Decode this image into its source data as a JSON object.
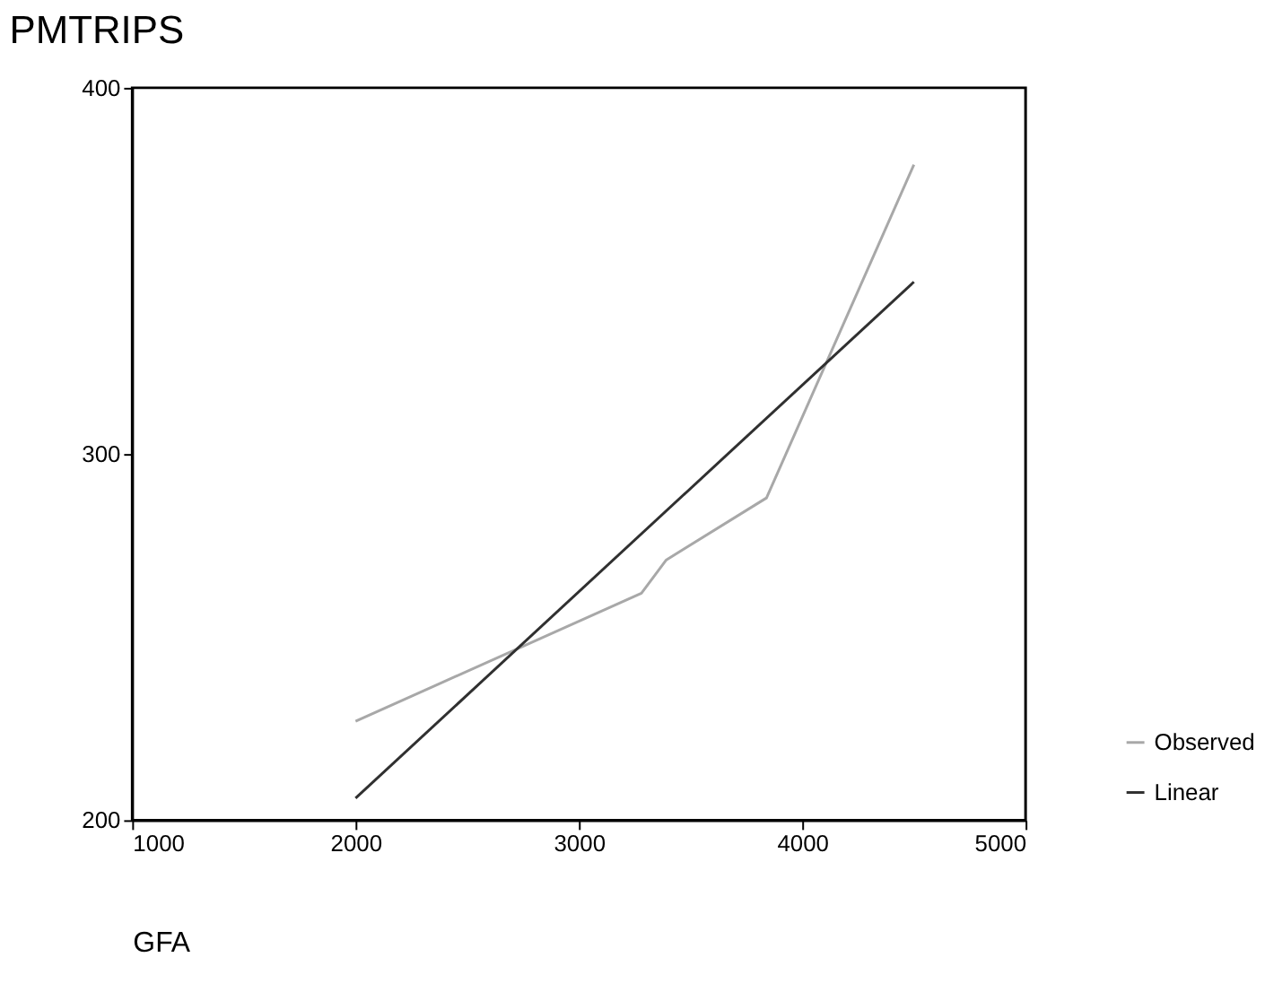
{
  "chart_data": {
    "type": "line",
    "title": "PMTRIPS",
    "xlabel": "GFA",
    "series": [
      {
        "name": "Observed",
        "color": "#a8a8a8",
        "x": [
          2000,
          3280,
          3390,
          3840,
          4500
        ],
        "values": [
          227,
          262,
          271,
          288,
          379
        ]
      },
      {
        "name": "Linear",
        "color": "#303030",
        "x": [
          2000,
          4500
        ],
        "values": [
          206,
          347
        ]
      }
    ],
    "xlim": [
      1000,
      5000
    ],
    "xticks": [
      1000,
      2000,
      3000,
      4000,
      5000
    ],
    "ylim": [
      200,
      400
    ],
    "yticks": [
      200,
      300,
      400
    ],
    "grid": false,
    "legend": "bottom right",
    "marker": "none",
    "line_style": "solid"
  }
}
